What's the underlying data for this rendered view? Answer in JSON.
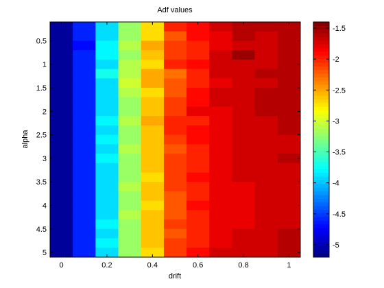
{
  "chart_data": {
    "type": "heatmap",
    "title": "Adf values",
    "xlabel": "drift",
    "ylabel": "alpha",
    "x_ticks": [
      0,
      0.2,
      0.4,
      0.6,
      0.8,
      1
    ],
    "x_tick_labels": [
      "0",
      "0.2",
      "0.4",
      "0.6",
      "0.8",
      "1"
    ],
    "y_ticks": [
      0.5,
      1,
      1.5,
      2,
      2.5,
      3,
      3.5,
      4,
      4.5,
      5
    ],
    "y_tick_labels": [
      "0.5",
      "1",
      "1.5",
      "2",
      "2.5",
      "3",
      "3.5",
      "4",
      "4.5",
      "5"
    ],
    "xlim": [
      -0.05,
      1.05
    ],
    "ylim": [
      0.1,
      5.1
    ],
    "x": [
      0,
      0.1,
      0.2,
      0.3,
      0.4,
      0.5,
      0.6,
      0.7,
      0.8,
      0.9,
      1.0
    ],
    "y": [
      0.2,
      0.4,
      0.6,
      0.8,
      1.0,
      1.2,
      1.4,
      1.6,
      1.8,
      2.0,
      2.2,
      2.4,
      2.6,
      2.8,
      3.0,
      3.2,
      3.4,
      3.6,
      3.8,
      4.0,
      4.2,
      4.4,
      4.6,
      4.8,
      5.0
    ],
    "clim": [
      -5.2,
      -1.4
    ],
    "colorbar_ticks": [
      -1.5,
      -2,
      -2.5,
      -3,
      -3.5,
      -4,
      -4.5,
      -5
    ],
    "colorbar_tick_labels": [
      "-1.5",
      "-2",
      "-2.5",
      "-3",
      "-3.5",
      "-4",
      "-4.5",
      "-5"
    ],
    "colormap": "jet",
    "values": [
      [
        -5.1,
        -4.6,
        -3.9,
        -3.2,
        -2.7,
        -2.0,
        -1.9,
        -1.7,
        -1.6,
        -1.6,
        -1.6
      ],
      [
        -5.1,
        -4.6,
        -3.9,
        -3.2,
        -2.7,
        -2.2,
        -1.9,
        -1.8,
        -1.6,
        -1.7,
        -1.6
      ],
      [
        -5.1,
        -4.7,
        -3.8,
        -3.1,
        -2.5,
        -2.1,
        -2.0,
        -1.8,
        -1.7,
        -1.7,
        -1.6
      ],
      [
        -5.1,
        -4.6,
        -3.8,
        -3.2,
        -2.6,
        -2.1,
        -2.0,
        -1.7,
        -1.5,
        -1.7,
        -1.6
      ],
      [
        -5.1,
        -4.6,
        -3.9,
        -3.1,
        -2.7,
        -2.0,
        -1.9,
        -1.7,
        -1.7,
        -1.7,
        -1.6
      ],
      [
        -5.1,
        -4.6,
        -3.7,
        -3.1,
        -2.5,
        -2.3,
        -2.0,
        -1.7,
        -1.7,
        -1.6,
        -1.6
      ],
      [
        -5.1,
        -4.6,
        -3.9,
        -3.0,
        -2.5,
        -2.2,
        -2.0,
        -1.8,
        -1.7,
        -1.7,
        -1.6
      ],
      [
        -5.1,
        -4.6,
        -3.9,
        -3.1,
        -2.7,
        -2.2,
        -1.9,
        -1.7,
        -1.7,
        -1.6,
        -1.6
      ],
      [
        -5.1,
        -4.6,
        -3.9,
        -3.2,
        -2.6,
        -2.1,
        -1.9,
        -1.7,
        -1.7,
        -1.6,
        -1.6
      ],
      [
        -5.1,
        -4.6,
        -3.9,
        -3.2,
        -2.6,
        -2.1,
        -1.8,
        -1.8,
        -1.7,
        -1.6,
        -1.6
      ],
      [
        -5.1,
        -4.6,
        -3.8,
        -3.1,
        -2.5,
        -2.0,
        -2.0,
        -1.8,
        -1.7,
        -1.7,
        -1.6
      ],
      [
        -5.1,
        -4.6,
        -3.9,
        -3.2,
        -2.6,
        -2.0,
        -1.9,
        -1.8,
        -1.7,
        -1.7,
        -1.6
      ],
      [
        -5.1,
        -4.6,
        -3.8,
        -3.2,
        -2.6,
        -2.1,
        -1.9,
        -1.8,
        -1.7,
        -1.7,
        -1.7
      ],
      [
        -5.1,
        -4.6,
        -3.9,
        -3.1,
        -2.6,
        -2.2,
        -2.0,
        -1.8,
        -1.7,
        -1.7,
        -1.7
      ],
      [
        -5.1,
        -4.6,
        -3.8,
        -3.2,
        -2.6,
        -2.1,
        -2.0,
        -1.8,
        -1.7,
        -1.7,
        -1.6
      ],
      [
        -5.1,
        -4.6,
        -3.9,
        -3.2,
        -2.6,
        -2.1,
        -2.0,
        -1.8,
        -1.7,
        -1.7,
        -1.7
      ],
      [
        -5.1,
        -4.6,
        -3.9,
        -3.2,
        -2.7,
        -2.1,
        -1.9,
        -1.8,
        -1.7,
        -1.7,
        -1.7
      ],
      [
        -5.1,
        -4.6,
        -3.9,
        -3.1,
        -2.6,
        -2.1,
        -2.0,
        -1.8,
        -1.8,
        -1.7,
        -1.7
      ],
      [
        -5.1,
        -4.6,
        -3.9,
        -3.2,
        -2.6,
        -2.2,
        -2.0,
        -1.8,
        -1.8,
        -1.7,
        -1.7
      ],
      [
        -5.1,
        -4.6,
        -3.9,
        -3.2,
        -2.7,
        -2.2,
        -1.9,
        -1.8,
        -1.8,
        -1.7,
        -1.7
      ],
      [
        -5.1,
        -4.6,
        -3.9,
        -3.1,
        -2.6,
        -2.2,
        -2.0,
        -1.8,
        -1.8,
        -1.7,
        -1.7
      ],
      [
        -5.1,
        -4.6,
        -3.8,
        -3.2,
        -2.6,
        -2.1,
        -2.0,
        -1.8,
        -1.8,
        -1.7,
        -1.7
      ],
      [
        -5.1,
        -4.6,
        -3.9,
        -3.2,
        -2.6,
        -2.2,
        -2.0,
        -1.8,
        -1.7,
        -1.7,
        -1.6
      ],
      [
        -5.1,
        -4.6,
        -3.8,
        -3.2,
        -2.6,
        -2.1,
        -2.0,
        -1.8,
        -1.7,
        -1.7,
        -1.6
      ],
      [
        -5.1,
        -4.6,
        -3.9,
        -3.2,
        -2.7,
        -2.1,
        -1.9,
        -1.7,
        -1.7,
        -1.7,
        -1.6
      ]
    ]
  }
}
